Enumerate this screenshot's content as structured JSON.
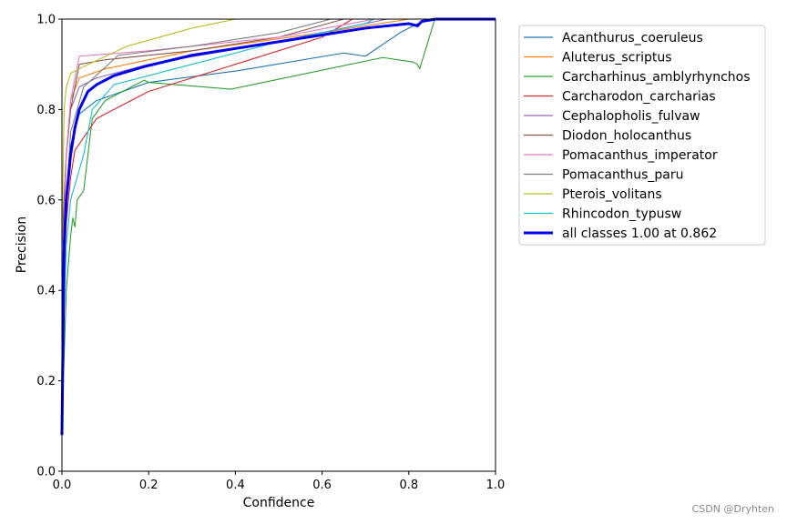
{
  "chart_data": {
    "type": "line",
    "title": "",
    "xlabel": "Confidence",
    "ylabel": "Precision",
    "xlim": [
      0,
      1
    ],
    "ylim": [
      0,
      1
    ],
    "x_ticks": [
      "0.0",
      "0.2",
      "0.4",
      "0.6",
      "0.8",
      "1.0"
    ],
    "y_ticks": [
      "0.0",
      "0.2",
      "0.4",
      "0.6",
      "0.8",
      "1.0"
    ],
    "grid": false,
    "legend_position": "outside-right-top",
    "series": [
      {
        "name": "Acanthurus_coeruleus",
        "color": "#1f77b4",
        "x": [
          0.0,
          0.01,
          0.02,
          0.04,
          0.08,
          0.2,
          0.4,
          0.65,
          0.7,
          0.78,
          0.82,
          0.85,
          1.0
        ],
        "y": [
          0.3,
          0.6,
          0.72,
          0.79,
          0.82,
          0.86,
          0.885,
          0.925,
          0.918,
          0.97,
          0.99,
          1.0,
          1.0
        ]
      },
      {
        "name": "Aluterus_scriptus",
        "color": "#ff7f0e",
        "x": [
          0.0,
          0.01,
          0.02,
          0.04,
          0.1,
          0.3,
          0.6,
          0.8,
          0.85,
          1.0
        ],
        "y": [
          0.4,
          0.7,
          0.82,
          0.87,
          0.89,
          0.93,
          0.97,
          1.0,
          1.0,
          1.0
        ]
      },
      {
        "name": "Carcharhinus_amblyrhynchos",
        "color": "#2ca02c",
        "x": [
          0.0,
          0.01,
          0.02,
          0.025,
          0.03,
          0.035,
          0.05,
          0.07,
          0.1,
          0.19,
          0.2,
          0.39,
          0.74,
          0.81,
          0.82,
          0.825,
          0.86,
          1.0
        ],
        "y": [
          0.1,
          0.4,
          0.52,
          0.56,
          0.54,
          0.6,
          0.62,
          0.78,
          0.82,
          0.865,
          0.86,
          0.845,
          0.915,
          0.905,
          0.9,
          0.89,
          1.0,
          1.0
        ]
      },
      {
        "name": "Carcharodon_carcharias",
        "color": "#d62728",
        "x": [
          0.0,
          0.01,
          0.02,
          0.03,
          0.08,
          0.2,
          0.4,
          0.6,
          0.67,
          1.0
        ],
        "y": [
          0.3,
          0.55,
          0.65,
          0.71,
          0.78,
          0.84,
          0.9,
          0.96,
          1.0,
          1.0
        ]
      },
      {
        "name": "Cephalopholis_fulvaw",
        "color": "#9467bd",
        "x": [
          0.0,
          0.01,
          0.02,
          0.04,
          0.08,
          0.2,
          0.5,
          0.7,
          0.75,
          1.0
        ],
        "y": [
          0.5,
          0.7,
          0.8,
          0.85,
          0.87,
          0.9,
          0.95,
          0.99,
          1.0,
          1.0
        ]
      },
      {
        "name": "Diodon_holocanthus",
        "color": "#8c564b",
        "x": [
          0.0,
          0.01,
          0.02,
          0.04,
          0.1,
          0.3,
          0.5,
          0.65,
          1.0
        ],
        "y": [
          0.5,
          0.7,
          0.8,
          0.9,
          0.91,
          0.93,
          0.96,
          1.0,
          1.0
        ]
      },
      {
        "name": "Pomacanthus_imperator",
        "color": "#e377c2",
        "x": [
          0.0,
          0.01,
          0.02,
          0.04,
          0.2,
          0.5,
          0.72,
          1.0
        ],
        "y": [
          0.4,
          0.7,
          0.82,
          0.918,
          0.93,
          0.96,
          1.0,
          1.0
        ]
      },
      {
        "name": "Pomacanthus_paru",
        "color": "#7f7f7f",
        "x": [
          0.0,
          0.01,
          0.02,
          0.05,
          0.13,
          0.3,
          0.5,
          0.62,
          1.0
        ],
        "y": [
          0.3,
          0.6,
          0.75,
          0.85,
          0.92,
          0.94,
          0.97,
          1.0,
          1.0
        ]
      },
      {
        "name": "Pterois_volitans",
        "color": "#bcbd22",
        "x": [
          0.0,
          0.005,
          0.01,
          0.02,
          0.05,
          0.15,
          0.3,
          0.4,
          1.0
        ],
        "y": [
          0.5,
          0.8,
          0.85,
          0.88,
          0.895,
          0.94,
          0.98,
          1.0,
          1.0
        ]
      },
      {
        "name": "Rhincodon_typusw",
        "color": "#17becf",
        "x": [
          0.0,
          0.01,
          0.02,
          0.05,
          0.07,
          0.12,
          0.3,
          0.5,
          0.7,
          0.72,
          1.0
        ],
        "y": [
          0.2,
          0.5,
          0.6,
          0.7,
          0.8,
          0.855,
          0.9,
          0.95,
          0.99,
          1.0,
          1.0
        ]
      },
      {
        "name": "all classes 1.00 at 0.862",
        "color": "#0000ee",
        "bold": true,
        "x": [
          0.0,
          0.005,
          0.01,
          0.02,
          0.03,
          0.04,
          0.06,
          0.08,
          0.12,
          0.19,
          0.3,
          0.5,
          0.7,
          0.8,
          0.82,
          0.83,
          0.862,
          1.0
        ],
        "y": [
          0.08,
          0.5,
          0.6,
          0.7,
          0.76,
          0.8,
          0.84,
          0.855,
          0.875,
          0.895,
          0.92,
          0.95,
          0.98,
          0.99,
          0.985,
          0.995,
          1.0,
          1.0
        ]
      }
    ]
  },
  "watermark": "CSDN @Dryhten"
}
